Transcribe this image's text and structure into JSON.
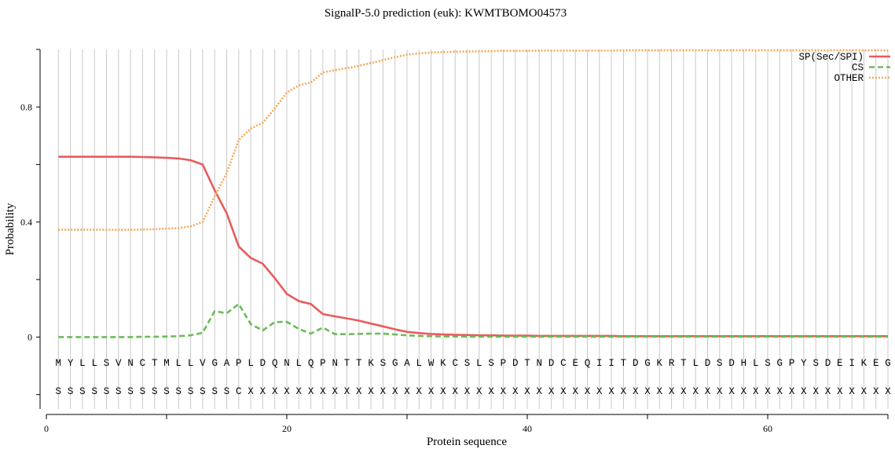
{
  "chart_data": {
    "type": "line",
    "title": "SignalP-5.0 prediction (euk):  KWMTBOMO04573",
    "xlabel": "Protein sequence",
    "ylabel": "Probability",
    "xlim": [
      0,
      70
    ],
    "ylim": [
      -0.25,
      1.0
    ],
    "x_ticks": [
      0,
      20,
      40,
      60
    ],
    "x_minor_ticks": [
      10,
      30,
      50,
      70
    ],
    "y_ticks": [
      0,
      0.4,
      0.8
    ],
    "y_tick_labels": [
      "0",
      "0.4",
      "0.8"
    ],
    "y_minor_ticks": [
      -0.2,
      0.2,
      0.6,
      1.0
    ],
    "grid": "vertical lines at each residue",
    "legend_position": "top-right",
    "sequence": [
      "M",
      "Y",
      "L",
      "L",
      "S",
      "V",
      "N",
      "C",
      "T",
      "M",
      "L",
      "L",
      "V",
      "G",
      "A",
      "P",
      "L",
      "D",
      "Q",
      "N",
      "L",
      "Q",
      "P",
      "N",
      "T",
      "T",
      "K",
      "S",
      "G",
      "A",
      "L",
      "W",
      "K",
      "C",
      "S",
      "L",
      "S",
      "P",
      "D",
      "T",
      "N",
      "D",
      "C",
      "E",
      "Q",
      "I",
      "I",
      "T",
      "D",
      "G",
      "K",
      "R",
      "T",
      "L",
      "D",
      "S",
      "D",
      "H",
      "L",
      "S",
      "G",
      "P",
      "Y",
      "S",
      "D",
      "E",
      "I",
      "K",
      "E",
      "G"
    ],
    "annotation": [
      "S",
      "S",
      "S",
      "S",
      "S",
      "S",
      "S",
      "S",
      "S",
      "S",
      "S",
      "S",
      "S",
      "S",
      "S",
      "C",
      "X",
      "X",
      "X",
      "X",
      "X",
      "X",
      "X",
      "X",
      "X",
      "X",
      "X",
      "X",
      "X",
      "X",
      "X",
      "X",
      "X",
      "X",
      "X",
      "X",
      "X",
      "X",
      "X",
      "X",
      "X",
      "X",
      "X",
      "X",
      "X",
      "X",
      "X",
      "X",
      "X",
      "X",
      "X",
      "X",
      "X",
      "X",
      "X",
      "X",
      "X",
      "X",
      "X",
      "X",
      "X",
      "X",
      "X",
      "X",
      "X",
      "X",
      "X",
      "X",
      "X",
      "X"
    ],
    "series": [
      {
        "name": "SP(Sec/SPI)",
        "color": "#e85c5c",
        "style": "solid",
        "values": [
          0.627,
          0.627,
          0.627,
          0.627,
          0.627,
          0.627,
          0.627,
          0.626,
          0.625,
          0.623,
          0.621,
          0.615,
          0.6,
          0.51,
          0.43,
          0.315,
          0.275,
          0.255,
          0.205,
          0.15,
          0.125,
          0.115,
          0.08,
          0.072,
          0.065,
          0.057,
          0.047,
          0.037,
          0.027,
          0.018,
          0.014,
          0.011,
          0.009,
          0.008,
          0.007,
          0.006,
          0.006,
          0.005,
          0.005,
          0.005,
          0.004,
          0.004,
          0.004,
          0.004,
          0.004,
          0.004,
          0.004,
          0.003,
          0.003,
          0.003,
          0.003,
          0.003,
          0.003,
          0.003,
          0.003,
          0.003,
          0.003,
          0.003,
          0.003,
          0.003,
          0.003,
          0.003,
          0.003,
          0.003,
          0.003,
          0.003,
          0.003,
          0.003,
          0.003,
          0.003
        ]
      },
      {
        "name": "CS",
        "color": "#6cbb5a",
        "style": "dashed",
        "values": [
          0.0,
          0.0,
          0.0,
          0.0,
          0.0,
          0.0,
          0.0,
          0.001,
          0.001,
          0.002,
          0.003,
          0.006,
          0.015,
          0.09,
          0.083,
          0.115,
          0.045,
          0.023,
          0.052,
          0.053,
          0.028,
          0.012,
          0.033,
          0.01,
          0.01,
          0.011,
          0.012,
          0.012,
          0.009,
          0.006,
          0.004,
          0.003,
          0.002,
          0.002,
          0.001,
          0.001,
          0.001,
          0.001,
          0.001,
          0.001,
          0.001,
          0.001,
          0.001,
          0.001,
          0.001,
          0.001,
          0.001,
          0.001,
          0.001,
          0.001,
          0.001,
          0.001,
          0.001,
          0.001,
          0.001,
          0.001,
          0.001,
          0.001,
          0.001,
          0.001,
          0.001,
          0.001,
          0.001,
          0.001,
          0.001,
          0.001,
          0.001,
          0.001,
          0.001,
          0.001
        ]
      },
      {
        "name": "OTHER",
        "color": "#f5a85a",
        "style": "dotted",
        "values": [
          0.373,
          0.373,
          0.373,
          0.373,
          0.373,
          0.373,
          0.373,
          0.374,
          0.375,
          0.377,
          0.379,
          0.385,
          0.4,
          0.49,
          0.57,
          0.685,
          0.725,
          0.745,
          0.795,
          0.85,
          0.875,
          0.885,
          0.92,
          0.928,
          0.935,
          0.943,
          0.953,
          0.963,
          0.973,
          0.982,
          0.986,
          0.989,
          0.991,
          0.992,
          0.993,
          0.994,
          0.994,
          0.995,
          0.995,
          0.995,
          0.996,
          0.996,
          0.996,
          0.996,
          0.996,
          0.996,
          0.996,
          0.997,
          0.997,
          0.997,
          0.997,
          0.997,
          0.997,
          0.997,
          0.997,
          0.997,
          0.997,
          0.997,
          0.997,
          0.997,
          0.997,
          0.997,
          0.997,
          0.997,
          0.997,
          0.997,
          0.997,
          0.997,
          0.997,
          0.997
        ]
      }
    ]
  }
}
